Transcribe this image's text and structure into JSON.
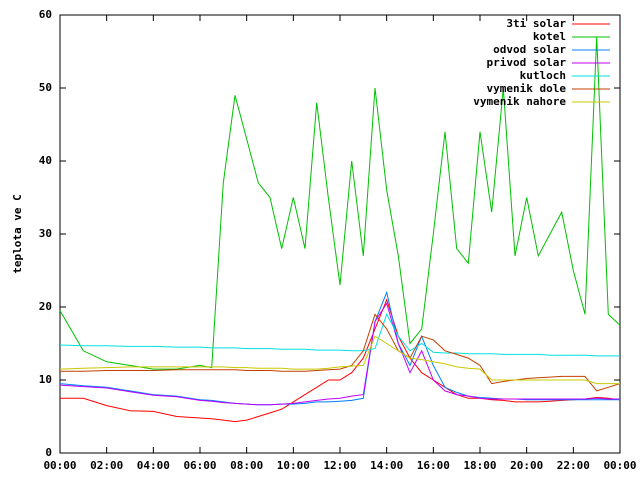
{
  "chart_data": {
    "type": "line",
    "y_label": "teplota ve C",
    "x": [
      0,
      1,
      2,
      3,
      4,
      5,
      6,
      6.5,
      7,
      7.5,
      8,
      8.5,
      9,
      9.5,
      10,
      10.5,
      11,
      11.5,
      12,
      12.5,
      13,
      13.5,
      14,
      14.5,
      15,
      15.5,
      16,
      16.5,
      17,
      17.5,
      18,
      18.5,
      19,
      19.5,
      20,
      20.5,
      21,
      21.5,
      22,
      22.5,
      23,
      23.5,
      24
    ],
    "xlim": [
      0,
      24
    ],
    "xticks": [
      {
        "value": 0,
        "label": "00:00"
      },
      {
        "value": 2,
        "label": "02:00"
      },
      {
        "value": 4,
        "label": "04:00"
      },
      {
        "value": 6,
        "label": "06:00"
      },
      {
        "value": 8,
        "label": "08:00"
      },
      {
        "value": 10,
        "label": "10:00"
      },
      {
        "value": 12,
        "label": "12:00"
      },
      {
        "value": 14,
        "label": "14:00"
      },
      {
        "value": 16,
        "label": "16:00"
      },
      {
        "value": 18,
        "label": "18:00"
      },
      {
        "value": 20,
        "label": "20:00"
      },
      {
        "value": 22,
        "label": "22:00"
      },
      {
        "value": 24,
        "label": "00:00"
      }
    ],
    "ylim": [
      0,
      60
    ],
    "yticks": [
      0,
      10,
      20,
      30,
      40,
      50,
      60
    ],
    "legend": "top-right",
    "series": [
      {
        "name": "3ti solar",
        "color": "#ff0000",
        "values": [
          7.5,
          7.5,
          6.5,
          5.8,
          5.7,
          5,
          4.8,
          4.7,
          4.5,
          4.3,
          4.5,
          5,
          5.5,
          6,
          7,
          8,
          9,
          10,
          10,
          11,
          13,
          17,
          21,
          16,
          13,
          11,
          10,
          9,
          8,
          7.5,
          7.5,
          7.3,
          7.2,
          7,
          7,
          7,
          7.1,
          7.2,
          7.3,
          7.4,
          7.6,
          7.5,
          7.3
        ]
      },
      {
        "name": "kotel",
        "color": "#00c000",
        "values": [
          19.5,
          14,
          12.5,
          12,
          11.5,
          11.5,
          12,
          11.7,
          37,
          49,
          43,
          37,
          35,
          28,
          35,
          28,
          48,
          35,
          23,
          40,
          27,
          50,
          36,
          27,
          15,
          17,
          30,
          44,
          28,
          26,
          44,
          33,
          50,
          27,
          35,
          27,
          30,
          33,
          25,
          19,
          57,
          19,
          17.5
        ]
      },
      {
        "name": "odvod solar",
        "color": "#0080ff",
        "values": [
          9.5,
          9.2,
          9,
          8.5,
          8,
          7.8,
          7.3,
          7.2,
          7,
          6.8,
          6.7,
          6.6,
          6.6,
          6.7,
          6.7,
          6.8,
          7,
          7,
          7.1,
          7.2,
          7.5,
          18,
          22,
          15,
          12,
          16,
          12,
          9,
          8.3,
          7.8,
          7.6,
          7.5,
          7.4,
          7.4,
          7.3,
          7.3,
          7.3,
          7.3,
          7.3,
          7.3,
          7.3,
          7.3,
          7.3
        ]
      },
      {
        "name": "privod solar",
        "color": "#c000ff",
        "values": [
          9.3,
          9.1,
          8.9,
          8.4,
          7.9,
          7.7,
          7.2,
          7.1,
          6.9,
          6.8,
          6.7,
          6.6,
          6.6,
          6.7,
          6.8,
          7,
          7.2,
          7.4,
          7.5,
          7.8,
          8,
          18,
          20.5,
          15,
          11,
          14,
          10,
          8.5,
          8,
          7.8,
          7.5,
          7.4,
          7.4,
          7.4,
          7.4,
          7.4,
          7.4,
          7.4,
          7.4,
          7.4,
          7.5,
          7.4,
          7.4
        ]
      },
      {
        "name": "kutloch",
        "color": "#00e0e0",
        "values": [
          14.8,
          14.7,
          14.7,
          14.6,
          14.6,
          14.5,
          14.5,
          14.4,
          14.4,
          14.4,
          14.3,
          14.3,
          14.3,
          14.2,
          14.2,
          14.2,
          14.1,
          14.1,
          14.1,
          14,
          14,
          14.3,
          19,
          16,
          14,
          15,
          13.8,
          13.7,
          13.7,
          13.6,
          13.6,
          13.6,
          13.5,
          13.5,
          13.5,
          13.5,
          13.4,
          13.4,
          13.4,
          13.4,
          13.3,
          13.3,
          13.3
        ]
      },
      {
        "name": "vymenik dole",
        "color": "#c04000",
        "values": [
          11.2,
          11.2,
          11.3,
          11.3,
          11.3,
          11.4,
          11.4,
          11.4,
          11.4,
          11.4,
          11.3,
          11.3,
          11.3,
          11.2,
          11.2,
          11.2,
          11.3,
          11.4,
          11.5,
          12,
          14,
          19,
          17,
          14,
          13,
          16,
          15.5,
          14,
          13.5,
          13,
          12,
          9.5,
          9.8,
          10,
          10.2,
          10.3,
          10.4,
          10.5,
          10.5,
          10.5,
          8.5,
          9,
          9.5
        ]
      },
      {
        "name": "vymenik nahore",
        "color": "#c8c800",
        "values": [
          11.5,
          11.6,
          11.7,
          11.8,
          11.8,
          11.8,
          11.8,
          11.8,
          11.8,
          11.7,
          11.7,
          11.6,
          11.6,
          11.6,
          11.5,
          11.5,
          11.5,
          11.6,
          11.8,
          11.9,
          12,
          16,
          15,
          14,
          13,
          12.8,
          12.5,
          12.2,
          11.8,
          11.6,
          11.5,
          10,
          10,
          10,
          10,
          10,
          10,
          10,
          10,
          10,
          9.5,
          9.5,
          9.5
        ]
      }
    ]
  }
}
